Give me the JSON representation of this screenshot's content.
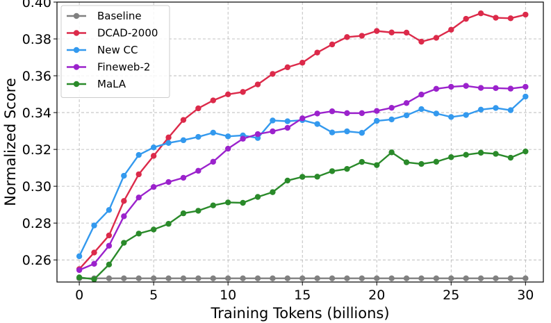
{
  "chart_data": {
    "type": "line",
    "title": "",
    "xlabel": "Training Tokens (billions)",
    "ylabel": "Normalized Score",
    "xlim": [
      -1.5,
      31.2
    ],
    "ylim": [
      0.248,
      0.4
    ],
    "xticks": [
      0,
      5,
      10,
      15,
      20,
      25,
      30
    ],
    "yticks": [
      0.26,
      0.28,
      0.3,
      0.32,
      0.34,
      0.36,
      0.38,
      0.4
    ],
    "ytick_labels": [
      "0.26",
      "0.28",
      "0.30",
      "0.32",
      "0.34",
      "0.36",
      "0.38",
      "0.40"
    ],
    "grid": true,
    "legend_position": "top-left",
    "x": [
      0,
      1,
      2,
      3,
      4,
      5,
      6,
      7,
      8,
      9,
      10,
      11,
      12,
      13,
      14,
      15,
      16,
      17,
      18,
      19,
      20,
      21,
      22,
      23,
      24,
      25,
      26,
      27,
      28,
      29,
      30
    ],
    "series": [
      {
        "name": "Baseline",
        "color": "#808080",
        "values": [
          0.25,
          0.25,
          0.25,
          0.25,
          0.25,
          0.25,
          0.25,
          0.25,
          0.25,
          0.25,
          0.25,
          0.25,
          0.25,
          0.25,
          0.25,
          0.25,
          0.25,
          0.25,
          0.25,
          0.25,
          0.25,
          0.25,
          0.25,
          0.25,
          0.25,
          0.25,
          0.25,
          0.25,
          0.25,
          0.25,
          0.25
        ]
      },
      {
        "name": "DCAD-2000",
        "color": "#dc2a4a",
        "values": [
          0.255,
          0.264,
          0.2733,
          0.292,
          0.3065,
          0.3165,
          0.3265,
          0.336,
          0.3423,
          0.3466,
          0.3499,
          0.3512,
          0.3553,
          0.361,
          0.3646,
          0.3671,
          0.3726,
          0.377,
          0.381,
          0.3817,
          0.3843,
          0.3835,
          0.3834,
          0.3785,
          0.3806,
          0.385,
          0.3909,
          0.3939,
          0.3915,
          0.3912,
          0.3932
        ]
      },
      {
        "name": "New CC",
        "color": "#3399ee",
        "values": [
          0.262,
          0.2787,
          0.2871,
          0.3057,
          0.317,
          0.3211,
          0.3235,
          0.325,
          0.3268,
          0.3291,
          0.3271,
          0.3276,
          0.3262,
          0.3357,
          0.3353,
          0.3359,
          0.3338,
          0.3292,
          0.3298,
          0.329,
          0.3355,
          0.3363,
          0.3385,
          0.3419,
          0.3395,
          0.3376,
          0.3387,
          0.3416,
          0.3425,
          0.3413,
          0.3487
        ]
      },
      {
        "name": "Fineweb-2",
        "color": "#9b22cc",
        "values": [
          0.2545,
          0.2579,
          0.2677,
          0.2837,
          0.2939,
          0.2996,
          0.3023,
          0.3046,
          0.3084,
          0.3133,
          0.3204,
          0.3258,
          0.3283,
          0.3298,
          0.3317,
          0.3369,
          0.3395,
          0.3407,
          0.3397,
          0.3397,
          0.3409,
          0.3426,
          0.3452,
          0.3498,
          0.3529,
          0.354,
          0.3545,
          0.3534,
          0.3533,
          0.353,
          0.354
        ]
      },
      {
        "name": "MaLA",
        "color": "#2a8a2a",
        "values": [
          0.2505,
          0.2495,
          0.2575,
          0.2693,
          0.2743,
          0.2765,
          0.2796,
          0.2853,
          0.2867,
          0.2896,
          0.2912,
          0.291,
          0.2942,
          0.2968,
          0.3031,
          0.3051,
          0.3052,
          0.3082,
          0.3094,
          0.3132,
          0.3115,
          0.3184,
          0.313,
          0.3121,
          0.3133,
          0.3158,
          0.3171,
          0.3182,
          0.3176,
          0.3155,
          0.3189
        ]
      }
    ]
  }
}
